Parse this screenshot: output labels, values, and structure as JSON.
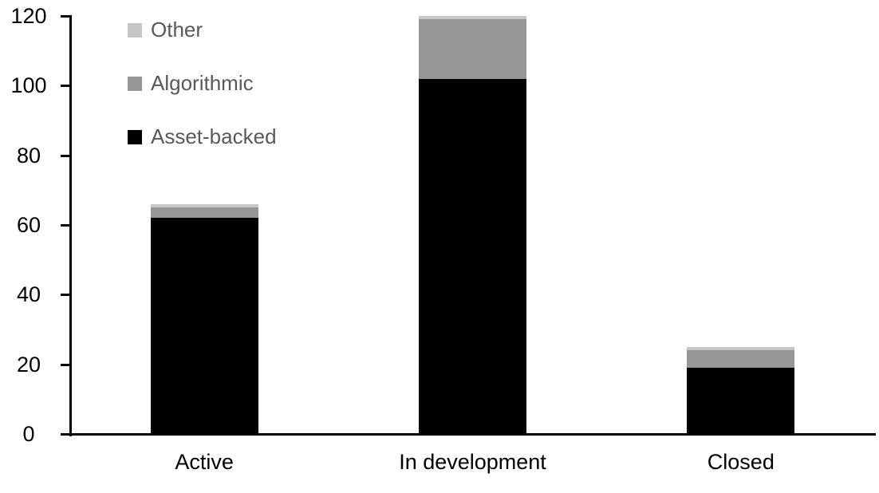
{
  "chart_data": {
    "type": "stacked-bar",
    "title": "",
    "categories": [
      "Active",
      "In development",
      "Closed"
    ],
    "series": [
      {
        "name": "Asset-backed",
        "color": "#000000",
        "values": [
          62,
          102,
          19
        ]
      },
      {
        "name": "Algorithmic",
        "color": "#969696",
        "values": [
          3,
          17,
          5
        ]
      },
      {
        "name": "Other",
        "color": "#c6c6c6",
        "values": [
          1,
          1,
          1
        ]
      }
    ],
    "totals_by_category": [
      66,
      120,
      25
    ],
    "stack_order_bottom_to_top": [
      "Asset-backed",
      "Algorithmic",
      "Other"
    ],
    "legend_order_top_to_bottom": [
      "Other",
      "Algorithmic",
      "Asset-backed"
    ],
    "legend_position": "top-left",
    "xlabel": "",
    "ylabel": "",
    "ylim": [
      0,
      120
    ],
    "yticks": [
      0,
      20,
      40,
      60,
      80,
      100,
      120
    ],
    "grid": false,
    "background_color": "#ffffff",
    "axis_color": "#000000",
    "tick_label_color": "#000000",
    "legend_text_color": "#595959"
  }
}
